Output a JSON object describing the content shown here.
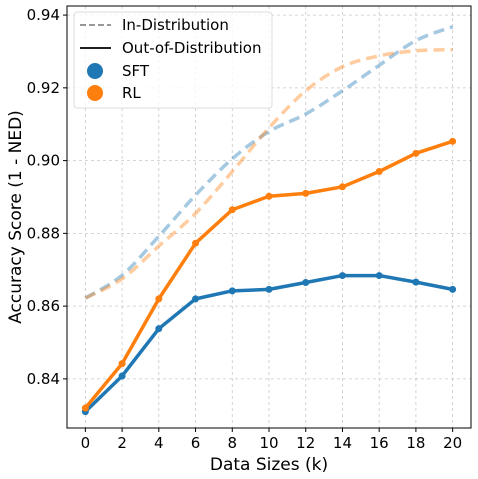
{
  "chart_data": {
    "type": "line",
    "xlabel": "Data Sizes (k)",
    "ylabel": "Accuracy Score (1 - NED)",
    "xlim": [
      -1,
      21
    ],
    "ylim": [
      0.8265,
      0.9425
    ],
    "x_ticks": [
      "0",
      "2",
      "4",
      "6",
      "8",
      "10",
      "12",
      "14",
      "16",
      "18",
      "20"
    ],
    "y_ticks": [
      "0.84",
      "0.86",
      "0.88",
      "0.90",
      "0.92",
      "0.94"
    ],
    "y_tick_values": [
      0.84,
      0.86,
      0.88,
      0.9,
      0.92,
      0.94
    ],
    "grid": true,
    "legend_position": "top-left",
    "legend": {
      "line_styles": [
        {
          "label": "In-Distribution",
          "style": "dashed"
        },
        {
          "label": "Out-of-Distribution",
          "style": "solid"
        }
      ],
      "methods": [
        {
          "label": "SFT",
          "color": "#1f77b4"
        },
        {
          "label": "RL",
          "color": "#ff7f0e"
        }
      ]
    },
    "x": [
      0,
      2,
      4,
      6,
      8,
      10,
      12,
      14,
      16,
      18,
      20
    ],
    "series": [
      {
        "name": "SFT",
        "distribution": "Out-of-Distribution",
        "color": "#1f77b4",
        "style": "solid",
        "markers": true,
        "values": [
          0.831,
          0.8408,
          0.8538,
          0.862,
          0.8642,
          0.8646,
          0.8665,
          0.8684,
          0.8684,
          0.8666,
          0.8646
        ]
      },
      {
        "name": "RL",
        "distribution": "Out-of-Distribution",
        "color": "#ff7f0e",
        "style": "solid",
        "markers": true,
        "values": [
          0.832,
          0.8442,
          0.862,
          0.8773,
          0.8865,
          0.8902,
          0.891,
          0.8928,
          0.897,
          0.902,
          0.9053
        ]
      },
      {
        "name": "SFT",
        "distribution": "In-Distribution",
        "color": "#1f77b4",
        "style": "dashed",
        "markers": false,
        "values": [
          0.8622,
          0.8685,
          0.8792,
          0.8905,
          0.9005,
          0.908,
          0.9128,
          0.9192,
          0.9262,
          0.933,
          0.9368
        ]
      },
      {
        "name": "RL",
        "distribution": "In-Distribution",
        "color": "#ff7f0e",
        "style": "dashed",
        "markers": false,
        "values": [
          0.8622,
          0.8675,
          0.8765,
          0.8855,
          0.897,
          0.909,
          0.9192,
          0.9258,
          0.9288,
          0.9302,
          0.9305
        ]
      }
    ]
  }
}
